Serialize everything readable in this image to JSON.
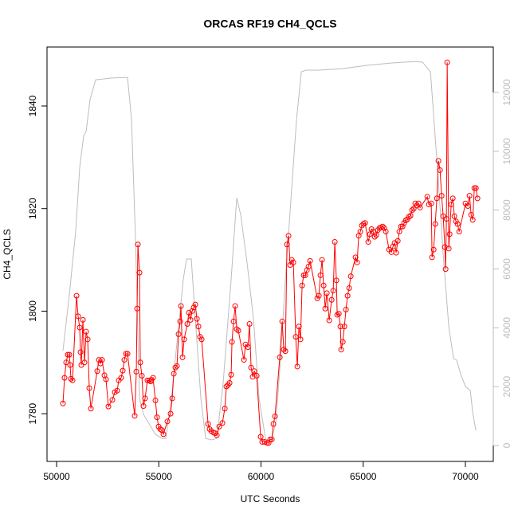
{
  "chart_data": {
    "type": "line",
    "title": "ORCAS RF19 CH4_QCLS",
    "xlabel": "UTC Seconds",
    "ylabel": "CH4_QCLS",
    "xlim": [
      49532,
      71365
    ],
    "ylim": [
      1770.7,
      1851.5
    ],
    "y2lim": [
      -542,
      13544
    ],
    "xticks": [
      50000,
      55000,
      60000,
      65000,
      70000
    ],
    "yticks": [
      1780,
      1800,
      1820,
      1840
    ],
    "y2ticks": [
      0,
      2000,
      4000,
      6000,
      8000,
      10000,
      12000
    ],
    "y2color": "#bdbdbd",
    "series": [
      {
        "color": "#ff0000",
        "markers": true,
        "x": [
          50312,
          50390,
          50468,
          50546,
          50624,
          50663,
          50702,
          50780,
          50975,
          51053,
          51131,
          51170,
          51209,
          51287,
          51365,
          51443,
          51521,
          51599,
          51677,
          51989,
          52067,
          52145,
          52223,
          52340,
          52418,
          52535,
          52730,
          52847,
          52964,
          53042,
          53159,
          53237,
          53315,
          53393,
          53471,
          53822,
          53900,
          53939,
          53978,
          54056,
          54095,
          54173,
          54251,
          54329,
          54446,
          54524,
          54602,
          54641,
          54719,
          54836,
          54914,
          54992,
          55070,
          55148,
          55226,
          55421,
          55577,
          55655,
          55733,
          55811,
          55889,
          55967,
          56045,
          56084,
          56162,
          56240,
          56396,
          56474,
          56552,
          56630,
          56708,
          56786,
          56864,
          56942,
          57020,
          57098,
          57410,
          57488,
          57566,
          57683,
          57761,
          57839,
          57956,
          58112,
          58229,
          58307,
          58385,
          58463,
          58541,
          58580,
          58658,
          58736,
          58814,
          58892,
          59165,
          59243,
          59360,
          59438,
          59516,
          59594,
          59672,
          59789,
          59984,
          60062,
          60179,
          60296,
          60374,
          60452,
          60530,
          60608,
          60686,
          60920,
          61037,
          61115,
          61193,
          61271,
          61349,
          61427,
          61505,
          61583,
          61700,
          61778,
          61856,
          61934,
          62012,
          62090,
          62168,
          62246,
          62324,
          62402,
          62753,
          62831,
          62909,
          62987,
          63065,
          63143,
          63221,
          63338,
          63455,
          63533,
          63611,
          63689,
          63728,
          63806,
          63884,
          63923,
          64001,
          64079,
          64157,
          64235,
          64313,
          64391,
          64625,
          64703,
          64781,
          64859,
          64937,
          65015,
          65093,
          65249,
          65327,
          65405,
          65483,
          65561,
          65639,
          65717,
          65795,
          65873,
          65951,
          66029,
          66107,
          66263,
          66380,
          66458,
          66536,
          66614,
          66692,
          66770,
          66848,
          66926,
          67004,
          67082,
          67160,
          67238,
          67316,
          67394,
          67472,
          67550,
          67628,
          67706,
          67784,
          68135,
          68213,
          68330,
          68369,
          68447,
          68525,
          68603,
          68681,
          68759,
          68837,
          68915,
          68993,
          69032,
          69071,
          69110,
          69188,
          69227,
          69305,
          69383,
          69461,
          69539,
          69617,
          69695,
          70007,
          70124,
          70202,
          70280,
          70358,
          70436,
          70514,
          70592
        ],
        "values": [
          1782,
          1787,
          1790,
          1791.5,
          1791.5,
          1789.5,
          1786.8,
          1786.5,
          1803,
          1799,
          1796.8,
          1792,
          1789.5,
          1798.3,
          1790,
          1796,
          1794.5,
          1785,
          1781,
          1788.3,
          1790.5,
          1789.8,
          1790.5,
          1787.5,
          1786.7,
          1781.4,
          1782.7,
          1784.2,
          1784.5,
          1786.5,
          1787,
          1788.4,
          1790.5,
          1791.7,
          1791.7,
          1779.6,
          1788.2,
          1800.5,
          1813,
          1807.5,
          1790,
          1787.4,
          1781.5,
          1783,
          1786.5,
          1786.5,
          1786.3,
          1786.6,
          1787,
          1782.6,
          1779.3,
          1777.5,
          1777,
          1776.8,
          1776,
          1778.5,
          1780,
          1783,
          1787.8,
          1789,
          1789.3,
          1795.5,
          1798,
          1801,
          1791,
          1794.5,
          1797.5,
          1799.7,
          1798.3,
          1800,
          1800.7,
          1801.3,
          1798.5,
          1797,
          1795,
          1794.5,
          1778,
          1777,
          1776.6,
          1776.3,
          1776.2,
          1775.8,
          1777.5,
          1778.2,
          1781,
          1785.3,
          1785.6,
          1786,
          1787.6,
          1794,
          1798,
          1801,
          1796.5,
          1796.2,
          1790.5,
          1793.5,
          1793,
          1797.5,
          1789,
          1787.2,
          1788.3,
          1787.4,
          1775.5,
          1774.5,
          1774.5,
          1774.3,
          1774.3,
          1775,
          1775,
          1778,
          1779.5,
          1791,
          1798,
          1792.5,
          1792.2,
          1813,
          1814.7,
          1809,
          1810,
          1809.5,
          1795,
          1789.2,
          1797,
          1794.5,
          1805,
          1807,
          1807,
          1808,
          1808.7,
          1809.8,
          1802.5,
          1803,
          1807,
          1810,
          1805,
          1800.5,
          1803.5,
          1798.2,
          1802.2,
          1804,
          1813.5,
          1806,
          1799.3,
          1799.5,
          1797,
          1792.5,
          1794,
          1797,
          1800.3,
          1803,
          1804.5,
          1806.8,
          1810.5,
          1809.5,
          1814.7,
          1815.5,
          1816.7,
          1817,
          1817.2,
          1813.5,
          1815,
          1816,
          1815.5,
          1814.5,
          1814.8,
          1815.8,
          1816.2,
          1816.3,
          1816.5,
          1816.2,
          1815.5,
          1812,
          1811.5,
          1812.6,
          1813.3,
          1811.4,
          1813.7,
          1815.5,
          1816.5,
          1816.5,
          1817.2,
          1817.7,
          1817.9,
          1818.4,
          1818.6,
          1819.7,
          1820,
          1821,
          1820.6,
          1821,
          1820.2,
          1822.3,
          1820.8,
          1821,
          1810.5,
          1812,
          1817,
          1822,
          1829.3,
          1827.5,
          1822.5,
          1818.5,
          1812.5,
          1808.2,
          1818,
          1848.5,
          1812.2,
          1815,
          1820.8,
          1822,
          1818.5,
          1817.5,
          1817,
          1815.5,
          1821,
          1820.5,
          1822.5,
          1818.8,
          1817.8,
          1824,
          1824,
          1822
        ]
      },
      {
        "color": "#bdbdbd",
        "axis": "y2",
        "markers": false,
        "x": [
          50312,
          50624,
          50936,
          51131,
          51326,
          51443,
          51638,
          51911,
          52691,
          53471,
          53666,
          53861,
          54056,
          54251,
          54836,
          55148,
          55343,
          55616,
          56006,
          56201,
          56357,
          56591,
          56786,
          57059,
          57293,
          57566,
          57839,
          58151,
          58541,
          58814,
          59009,
          59321,
          59633,
          59906,
          60218,
          60491,
          60725,
          60959,
          61193,
          61466,
          61739,
          61973,
          62207,
          62831,
          64001,
          65171,
          66341,
          67511,
          67901,
          68291,
          68603,
          68915,
          69188,
          69422,
          69578,
          69773,
          70007,
          70241,
          70358,
          70514
        ],
        "values": [
          3220,
          5120,
          7290,
          9450,
          10540,
          10670,
          11760,
          12430,
          12490,
          12510,
          11080,
          7020,
          1600,
          1060,
          380,
          240,
          240,
          1600,
          4310,
          5660,
          6340,
          6340,
          4310,
          1600,
          240,
          190,
          240,
          2140,
          5660,
          8420,
          7830,
          6200,
          4310,
          1600,
          240,
          110,
          790,
          2950,
          5660,
          8370,
          11080,
          12700,
          12760,
          12760,
          12810,
          12920,
          13000,
          13050,
          13030,
          12700,
          9720,
          6470,
          4040,
          2950,
          2900,
          2410,
          2000,
          1870,
          1110,
          510
        ]
      }
    ]
  }
}
